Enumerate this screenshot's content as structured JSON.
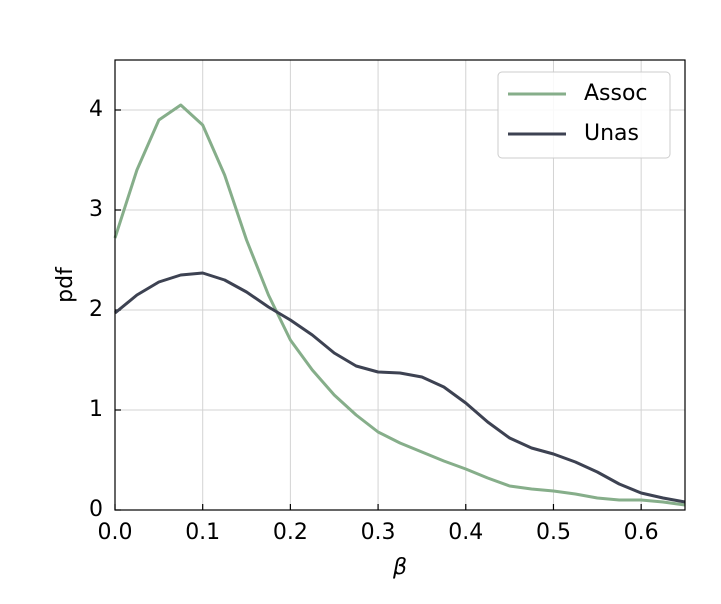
{
  "chart_data": {
    "type": "line",
    "x_label": "β",
    "y_label": "pdf",
    "x": [
      0,
      0.025,
      0.05,
      0.075,
      0.1,
      0.125,
      0.15,
      0.175,
      0.2,
      0.225,
      0.25,
      0.275,
      0.3,
      0.325,
      0.35,
      0.375,
      0.4,
      0.425,
      0.45,
      0.475,
      0.5,
      0.525,
      0.55,
      0.575,
      0.6,
      0.625,
      0.65
    ],
    "series": [
      {
        "name": "Assoc",
        "color": "#86ae8a",
        "values": [
          2.72,
          3.4,
          3.9,
          4.05,
          3.85,
          3.35,
          2.7,
          2.15,
          1.7,
          1.4,
          1.15,
          0.95,
          0.78,
          0.67,
          0.58,
          0.49,
          0.41,
          0.32,
          0.24,
          0.21,
          0.19,
          0.16,
          0.12,
          0.1,
          0.1,
          0.08,
          0.05
        ]
      },
      {
        "name": "Unas",
        "color": "#3d4252",
        "values": [
          1.97,
          2.15,
          2.28,
          2.35,
          2.37,
          2.3,
          2.18,
          2.03,
          1.9,
          1.75,
          1.57,
          1.44,
          1.38,
          1.37,
          1.33,
          1.23,
          1.07,
          0.88,
          0.72,
          0.62,
          0.56,
          0.48,
          0.38,
          0.26,
          0.17,
          0.12,
          0.08
        ]
      }
    ],
    "xlim": [
      0,
      0.65
    ],
    "ylim": [
      0,
      4.5
    ],
    "xticks": [
      {
        "value": 0,
        "label": "0.0"
      },
      0.1,
      0.2,
      0.3,
      0.4,
      0.5,
      0.6
    ],
    "yticks": [
      0,
      1,
      2,
      3,
      4
    ],
    "grid": true,
    "legend": "upper right"
  }
}
